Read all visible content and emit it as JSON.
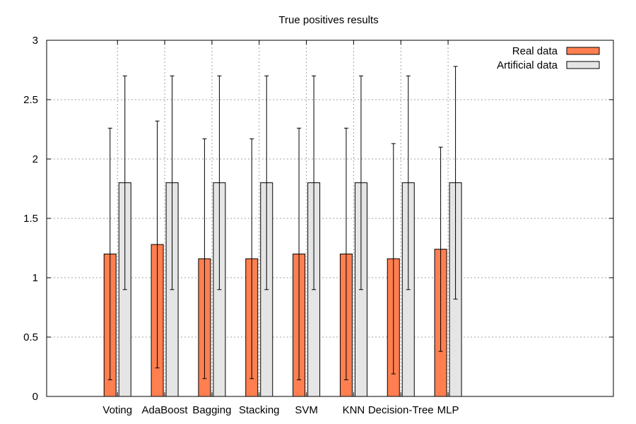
{
  "chart_data": {
    "type": "bar",
    "title": "True positives results",
    "categories": [
      "Voting",
      "AdaBoost",
      "Bagging",
      "Stacking",
      "SVM",
      "KNN",
      "Decision-Tree",
      "MLP"
    ],
    "series": [
      {
        "name": "Real data",
        "color": "#ff7f50",
        "values": [
          1.2,
          1.28,
          1.16,
          1.16,
          1.2,
          1.2,
          1.16,
          1.24
        ],
        "err_low": [
          0.14,
          0.24,
          0.15,
          0.15,
          0.14,
          0.14,
          0.19,
          0.38
        ],
        "err_high": [
          2.26,
          2.32,
          2.17,
          2.17,
          2.26,
          2.26,
          2.13,
          2.1
        ]
      },
      {
        "name": "Artificial data",
        "color": "#e5e5e5",
        "values": [
          1.8,
          1.8,
          1.8,
          1.8,
          1.8,
          1.8,
          1.8,
          1.8
        ],
        "err_low": [
          0.9,
          0.9,
          0.9,
          0.9,
          0.9,
          0.9,
          0.9,
          0.82
        ],
        "err_high": [
          2.7,
          2.7,
          2.7,
          2.7,
          2.7,
          2.7,
          2.7,
          2.78
        ]
      }
    ],
    "ylim": [
      0,
      3
    ],
    "yticks": [
      "0",
      "0.5",
      "1",
      "1.5",
      "2",
      "2.5",
      "3"
    ],
    "xlim": [
      -1.5,
      10.5
    ],
    "grid": true,
    "legend": "top-right"
  }
}
